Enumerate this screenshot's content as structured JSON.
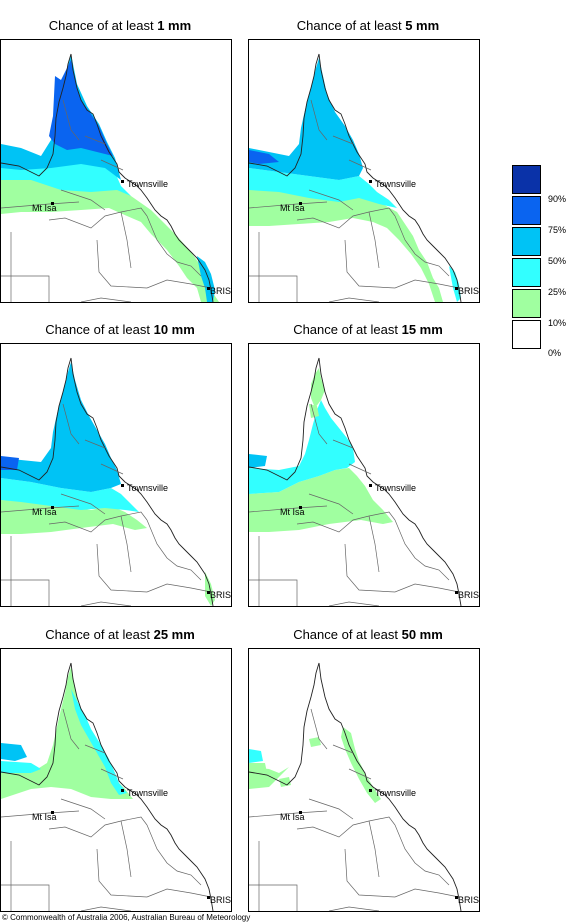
{
  "panels": [
    {
      "prefix": "Chance of at least",
      "amount": "1 mm",
      "level": 1
    },
    {
      "prefix": "Chance of at least",
      "amount": "5 mm",
      "level": 2
    },
    {
      "prefix": "Chance of at least",
      "amount": "10 mm",
      "level": 3
    },
    {
      "prefix": "Chance of at least",
      "amount": "15 mm",
      "level": 4
    },
    {
      "prefix": "Chance of at least",
      "amount": "25 mm",
      "level": 5
    },
    {
      "prefix": "Chance of at least",
      "amount": "50 mm",
      "level": 6
    }
  ],
  "places": {
    "townsville": "Townsville",
    "mt_isa": "Mt Isa",
    "brisbane": "BRIS"
  },
  "legend": {
    "labels": [
      "90%",
      "75%",
      "50%",
      "25%",
      "10%",
      "0%"
    ],
    "colors": [
      "#0a32a8",
      "#0a64f0",
      "#00c3f5",
      "#32ffff",
      "#a0ffa0",
      "#ffffff"
    ]
  },
  "copyright": "© Commonwealth of Australia 2006, Australian Bureau of Meteorology"
}
